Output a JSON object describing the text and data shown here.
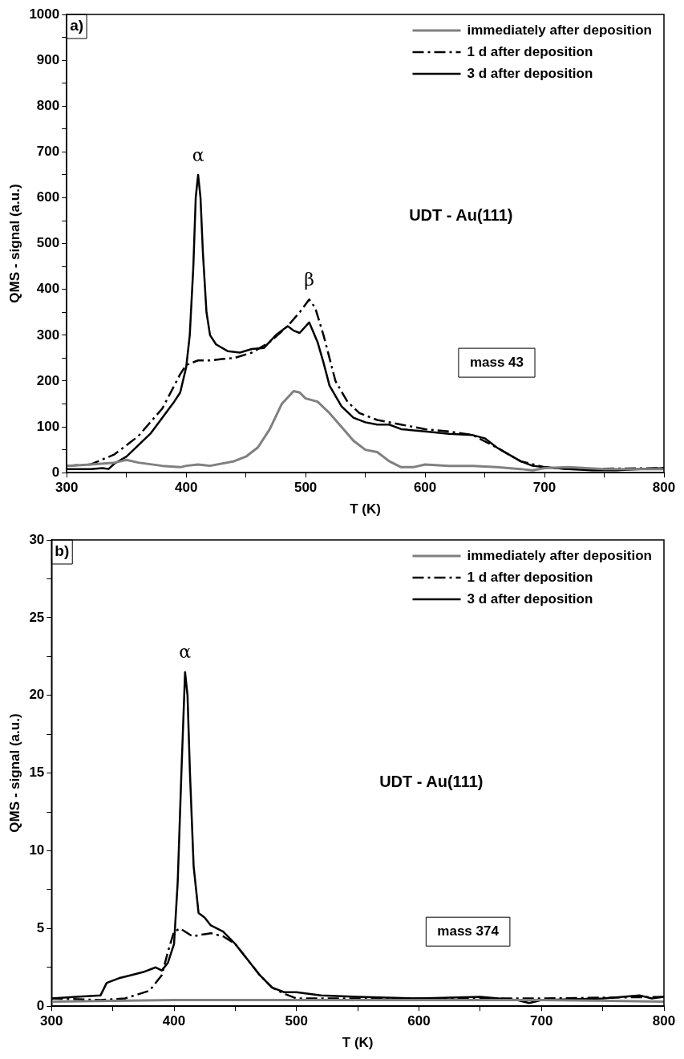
{
  "chart_data": [
    {
      "type": "line",
      "xlabel": "T (K)",
      "ylabel": "QMS - signal (a.u.)",
      "xlim": [
        300,
        800
      ],
      "ylim": [
        0,
        1000
      ],
      "xticks": [
        300,
        {
          "value": 350,
          "label": null
        },
        400,
        {
          "value": 450,
          "label": null
        },
        500,
        {
          "value": 550,
          "label": null
        },
        600,
        {
          "value": 650,
          "label": null
        },
        700,
        {
          "value": 750,
          "label": null
        },
        800
      ],
      "yticks": [
        0,
        {
          "value": 50,
          "label": null
        },
        100,
        {
          "value": 150,
          "label": null
        },
        200,
        {
          "value": 250,
          "label": null
        },
        300,
        {
          "value": 350,
          "label": null
        },
        400,
        {
          "value": 450,
          "label": null
        },
        500,
        {
          "value": 550,
          "label": null
        },
        600,
        {
          "value": 650,
          "label": null
        },
        700,
        {
          "value": 750,
          "label": null
        },
        800,
        {
          "value": 850,
          "label": null
        },
        900,
        {
          "value": 950,
          "label": null
        },
        1000
      ],
      "grid": false,
      "legend": "top right",
      "marker": "none",
      "annotations": [
        "a)",
        {
          "text": "α",
          "x": 410,
          "y": 650
        },
        {
          "text": "β",
          "x": 503,
          "y": 378
        },
        "UDT - Au(111)",
        "mass 43"
      ],
      "series": [
        {
          "name": "immediately after deposition",
          "color": "#808080",
          "line_style": "solid",
          "x": [
            300,
            320,
            340,
            350,
            360,
            380,
            395,
            400,
            410,
            420,
            440,
            450,
            460,
            470,
            480,
            490,
            495,
            500,
            510,
            520,
            530,
            540,
            550,
            560,
            570,
            580,
            590,
            600,
            620,
            640,
            660,
            680,
            690,
            700,
            720,
            750,
            800
          ],
          "values": [
            15,
            18,
            22,
            28,
            22,
            15,
            12,
            15,
            18,
            15,
            25,
            35,
            55,
            95,
            150,
            178,
            175,
            162,
            155,
            130,
            100,
            70,
            50,
            45,
            25,
            12,
            12,
            18,
            15,
            15,
            12,
            8,
            5,
            10,
            12,
            8,
            8
          ]
        },
        {
          "name": "1 d after deposition",
          "color": "#000000",
          "line_style": "dashed",
          "x": [
            300,
            320,
            340,
            360,
            380,
            395,
            400,
            410,
            420,
            430,
            440,
            455,
            470,
            485,
            495,
            503,
            508,
            515,
            525,
            535,
            545,
            560,
            580,
            600,
            620,
            640,
            660,
            680,
            700,
            720,
            800
          ],
          "values": [
            15,
            18,
            40,
            80,
            140,
            215,
            235,
            245,
            245,
            248,
            250,
            262,
            285,
            320,
            350,
            378,
            360,
            300,
            200,
            155,
            130,
            115,
            105,
            95,
            90,
            82,
            55,
            25,
            12,
            8,
            10
          ]
        },
        {
          "name": "3 d after deposition",
          "color": "#000000",
          "line_style": "solid",
          "x": [
            300,
            320,
            330,
            335,
            340,
            350,
            360,
            370,
            380,
            390,
            395,
            400,
            403,
            406,
            408,
            410,
            412,
            414,
            417,
            420,
            425,
            435,
            445,
            455,
            465,
            475,
            485,
            490,
            495,
            503,
            510,
            515,
            520,
            530,
            540,
            550,
            560,
            570,
            580,
            600,
            620,
            640,
            650,
            660,
            670,
            680,
            690,
            700,
            720,
            740,
            760,
            780,
            800
          ],
          "values": [
            8,
            8,
            10,
            8,
            20,
            35,
            60,
            85,
            120,
            155,
            175,
            230,
            300,
            450,
            600,
            650,
            600,
            480,
            350,
            300,
            280,
            265,
            262,
            270,
            272,
            300,
            320,
            310,
            305,
            328,
            285,
            240,
            190,
            145,
            120,
            110,
            105,
            105,
            95,
            90,
            85,
            82,
            75,
            55,
            40,
            25,
            15,
            12,
            8,
            5,
            5,
            8,
            10
          ]
        }
      ]
    },
    {
      "type": "line",
      "xlabel": "T (K)",
      "ylabel": "QMS - signal (a.u.)",
      "xlim": [
        300,
        800
      ],
      "ylim": [
        0,
        30
      ],
      "xticks": [
        300,
        {
          "value": 350,
          "label": null
        },
        400,
        {
          "value": 450,
          "label": null
        },
        500,
        {
          "value": 550,
          "label": null
        },
        600,
        {
          "value": 650,
          "label": null
        },
        700,
        {
          "value": 750,
          "label": null
        },
        800
      ],
      "yticks": [
        0,
        {
          "value": 2.5,
          "label": null
        },
        5,
        {
          "value": 7.5,
          "label": null
        },
        10,
        {
          "value": 12.5,
          "label": null
        },
        15,
        {
          "value": 17.5,
          "label": null
        },
        20,
        {
          "value": 22.5,
          "label": null
        },
        25,
        {
          "value": 27.5,
          "label": null
        },
        30
      ],
      "grid": false,
      "legend": "top right",
      "marker": "none",
      "annotations": [
        "b)",
        {
          "text": "α",
          "x": 409,
          "y": 21.5
        },
        "UDT - Au(111)",
        "mass 374"
      ],
      "series": [
        {
          "name": "immediately after deposition",
          "color": "#808080",
          "line_style": "solid",
          "x": [
            300,
            400,
            500,
            600,
            700,
            800
          ],
          "values": [
            0.3,
            0.4,
            0.4,
            0.4,
            0.4,
            0.3
          ]
        },
        {
          "name": "1 d after deposition",
          "color": "#000000",
          "line_style": "dashed",
          "x": [
            300,
            340,
            360,
            380,
            390,
            395,
            400,
            405,
            415,
            430,
            440,
            450,
            460,
            470,
            480,
            490,
            500,
            550,
            600,
            700,
            800
          ],
          "values": [
            0.5,
            0.4,
            0.5,
            1.0,
            2.0,
            3.5,
            4.8,
            5.0,
            4.5,
            4.7,
            4.5,
            4.0,
            3.0,
            2.0,
            1.2,
            0.8,
            0.5,
            0.5,
            0.5,
            0.5,
            0.6
          ]
        },
        {
          "name": "3 d after deposition",
          "color": "#000000",
          "line_style": "solid",
          "x": [
            300,
            320,
            340,
            345,
            355,
            365,
            375,
            385,
            390,
            395,
            400,
            403,
            406,
            409,
            411,
            413,
            416,
            420,
            425,
            430,
            440,
            450,
            460,
            470,
            480,
            490,
            500,
            520,
            550,
            600,
            650,
            680,
            690,
            700,
            750,
            780,
            790,
            800
          ],
          "values": [
            0.5,
            0.6,
            0.7,
            1.5,
            1.8,
            2.0,
            2.2,
            2.5,
            2.3,
            2.8,
            4,
            8,
            15,
            21.5,
            20,
            15,
            9,
            6,
            5.7,
            5.2,
            4.8,
            4.0,
            3.0,
            2.0,
            1.2,
            0.9,
            0.9,
            0.7,
            0.6,
            0.5,
            0.6,
            0.4,
            0.2,
            0.4,
            0.5,
            0.7,
            0.5,
            0.6
          ]
        }
      ]
    }
  ]
}
